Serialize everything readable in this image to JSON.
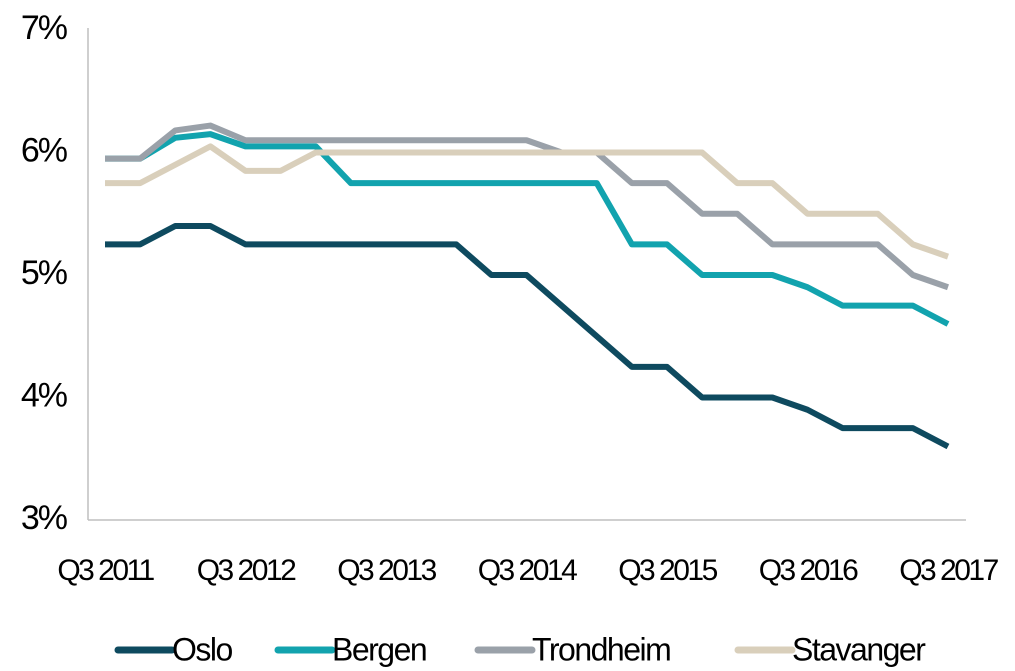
{
  "chart_data": {
    "type": "line",
    "categories": [
      "Q3 2011",
      null,
      null,
      null,
      "Q3 2012",
      null,
      null,
      null,
      "Q3 2013",
      null,
      null,
      null,
      "Q3 2014",
      null,
      null,
      null,
      "Q3 2015",
      null,
      null,
      null,
      "Q3 2016",
      null,
      null,
      null,
      "Q3 2017"
    ],
    "series": [
      {
        "name": "Oslo",
        "color": "#0e4a5f",
        "values": [
          5.25,
          5.25,
          5.4,
          5.4,
          5.25,
          5.25,
          5.25,
          5.25,
          5.25,
          5.25,
          5.25,
          5.0,
          5.0,
          4.75,
          4.5,
          4.25,
          4.25,
          4.0,
          4.0,
          4.0,
          3.9,
          3.75,
          3.75,
          3.75,
          3.6
        ]
      },
      {
        "name": "Bergen",
        "color": "#12a3ae",
        "values": [
          5.95,
          5.95,
          6.12,
          6.15,
          6.05,
          6.05,
          6.05,
          5.75,
          5.75,
          5.75,
          5.75,
          5.75,
          5.75,
          5.75,
          5.75,
          5.25,
          5.25,
          5.0,
          5.0,
          5.0,
          4.9,
          4.75,
          4.75,
          4.75,
          4.6
        ]
      },
      {
        "name": "Trondheim",
        "color": "#9aa1a9",
        "values": [
          5.95,
          5.95,
          6.18,
          6.22,
          6.1,
          6.1,
          6.1,
          6.1,
          6.1,
          6.1,
          6.1,
          6.1,
          6.1,
          6.0,
          6.0,
          5.75,
          5.75,
          5.5,
          5.5,
          5.25,
          5.25,
          5.25,
          5.25,
          5.0,
          4.9
        ]
      },
      {
        "name": "Stavanger",
        "color": "#d9cfbb",
        "values": [
          5.75,
          5.75,
          5.9,
          6.05,
          5.85,
          5.85,
          6.0,
          6.0,
          6.0,
          6.0,
          6.0,
          6.0,
          6.0,
          6.0,
          6.0,
          6.0,
          6.0,
          6.0,
          5.75,
          5.75,
          5.5,
          5.5,
          5.5,
          5.25,
          5.15
        ]
      }
    ],
    "ylim": [
      3,
      7
    ],
    "yticks": [
      {
        "value": 3,
        "label": "3%"
      },
      {
        "value": 4,
        "label": "4%"
      },
      {
        "value": 5,
        "label": "5%"
      },
      {
        "value": 6,
        "label": "6%"
      },
      {
        "value": 7,
        "label": "7%"
      }
    ],
    "grid": false,
    "legend": "bottom"
  }
}
